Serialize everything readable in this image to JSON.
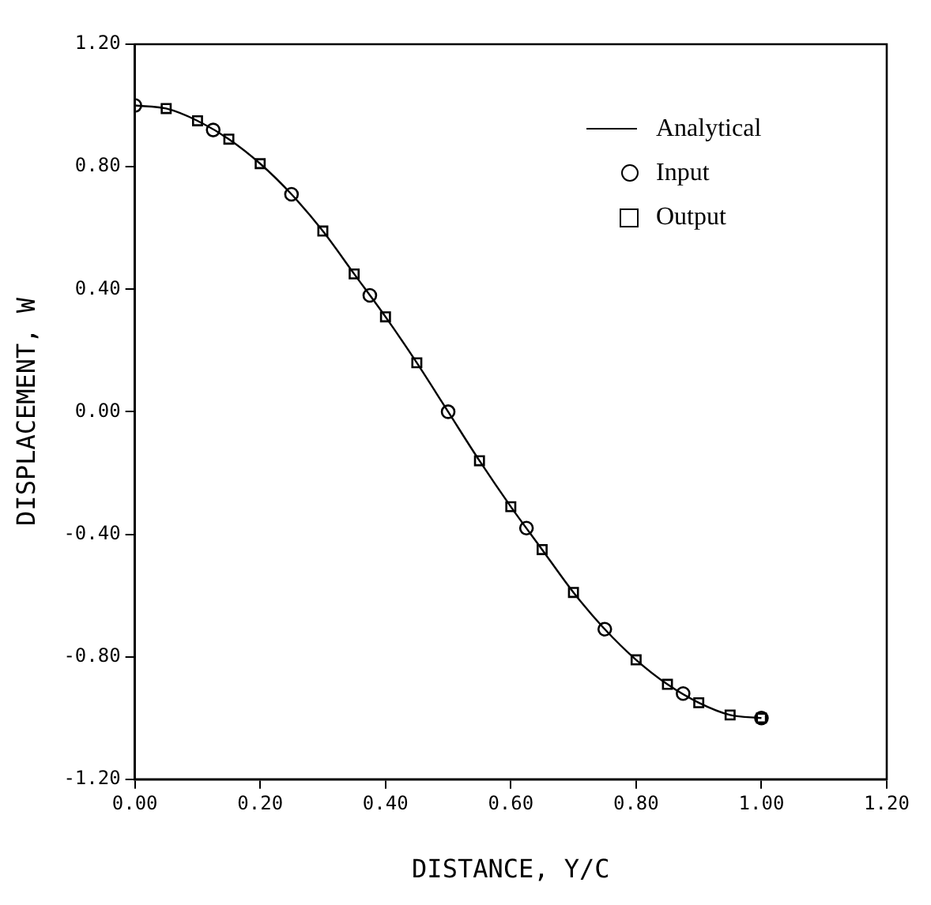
{
  "chart_data": {
    "type": "line",
    "xlabel": "DISTANCE, Y/C",
    "ylabel": "DISPLACEMENT, W",
    "xlim": [
      0,
      1.2
    ],
    "xticks": [
      {
        "value": 0,
        "label": "0.00"
      },
      {
        "value": 0.2,
        "label": "0.20"
      },
      {
        "value": 0.4,
        "label": "0.40"
      },
      {
        "value": 0.6,
        "label": "0.60"
      },
      {
        "value": 0.8,
        "label": "0.80"
      },
      {
        "value": 1.0,
        "label": "1.00"
      },
      {
        "value": 1.2,
        "label": "1.20"
      }
    ],
    "ylim": [
      -1.2,
      1.2
    ],
    "yticks": [
      {
        "value": -1.2,
        "label": "-1.20"
      },
      {
        "value": -0.8,
        "label": "-0.80"
      },
      {
        "value": -0.4,
        "label": "-0.40"
      },
      {
        "value": 0,
        "label": "0.00"
      },
      {
        "value": 0.4,
        "label": "0.40"
      },
      {
        "value": 0.8,
        "label": "0.80"
      },
      {
        "value": 1.2,
        "label": "1.20"
      }
    ],
    "grid": false,
    "legend": "top right",
    "series": [
      {
        "name": "Analytical",
        "type": "line",
        "color": "#000000",
        "marker": "none",
        "line_style": "solid",
        "x": [
          0,
          0.05,
          0.1,
          0.15,
          0.2,
          0.25,
          0.3,
          0.35,
          0.4,
          0.45,
          0.5,
          0.55,
          0.6,
          0.65,
          0.7,
          0.75,
          0.8,
          0.85,
          0.9,
          0.95,
          1.0
        ],
        "values": [
          1.0,
          0.99,
          0.95,
          0.89,
          0.81,
          0.71,
          0.59,
          0.45,
          0.31,
          0.16,
          0.0,
          -0.16,
          -0.31,
          -0.45,
          -0.59,
          -0.71,
          -0.81,
          -0.89,
          -0.95,
          -0.99,
          -1.0
        ]
      },
      {
        "name": "Input",
        "type": "scatter",
        "color": "#000000",
        "marker": "circle",
        "x": [
          0,
          0.125,
          0.25,
          0.375,
          0.5,
          0.625,
          0.75,
          0.875,
          1.0
        ],
        "values": [
          1.0,
          0.92,
          0.71,
          0.38,
          0.0,
          -0.38,
          -0.71,
          -0.92,
          -1.0
        ]
      },
      {
        "name": "Output",
        "type": "scatter",
        "color": "#000000",
        "marker": "square",
        "x": [
          0.05,
          0.1,
          0.15,
          0.2,
          0.3,
          0.35,
          0.4,
          0.45,
          0.55,
          0.6,
          0.65,
          0.7,
          0.8,
          0.85,
          0.9,
          0.95,
          1.0
        ],
        "values": [
          0.99,
          0.95,
          0.89,
          0.81,
          0.59,
          0.45,
          0.31,
          0.16,
          -0.16,
          -0.31,
          -0.45,
          -0.59,
          -0.81,
          -0.89,
          -0.95,
          -0.99,
          -1.0
        ]
      }
    ]
  }
}
